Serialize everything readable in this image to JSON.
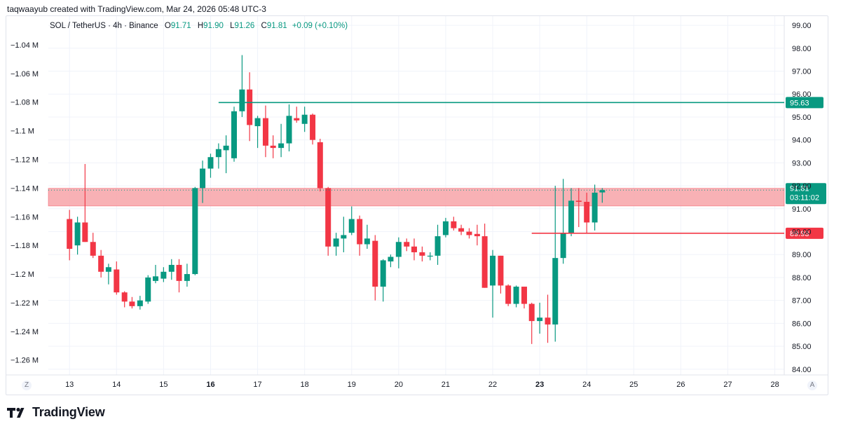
{
  "header": {
    "attribution": "taqwaayub created with TradingView.com, Mar 24, 2026 05:48 UTC-3"
  },
  "legend": {
    "symbol": "SOL / TetherUS · 4h · Binance",
    "o_label": "O",
    "o_value": "91.71",
    "h_label": "H",
    "h_value": "91.90",
    "l_label": "L",
    "l_value": "91.26",
    "c_label": "C",
    "c_value": "91.81",
    "change": "+0.09 (+0.10%)"
  },
  "buttons": {
    "z": "Z",
    "a": "A"
  },
  "footer": {
    "brand": "TradingView"
  },
  "colors": {
    "up": "#089981",
    "down": "#f23645",
    "zone_fill": "#f7a3a8",
    "resistance": "#089981",
    "support": "#f23645",
    "current": "#089981"
  },
  "chart_data": {
    "type": "candlestick",
    "symbol": "SOL / TetherUS",
    "interval": "4h",
    "exchange": "Binance",
    "x_ticks": [
      {
        "x": 13,
        "label": "13",
        "bold": false
      },
      {
        "x": 14,
        "label": "14",
        "bold": false
      },
      {
        "x": 15,
        "label": "15",
        "bold": false
      },
      {
        "x": 16,
        "label": "16",
        "bold": true
      },
      {
        "x": 17,
        "label": "17",
        "bold": false
      },
      {
        "x": 18,
        "label": "18",
        "bold": false
      },
      {
        "x": 19,
        "label": "19",
        "bold": false
      },
      {
        "x": 20,
        "label": "20",
        "bold": false
      },
      {
        "x": 21,
        "label": "21",
        "bold": false
      },
      {
        "x": 22,
        "label": "22",
        "bold": false
      },
      {
        "x": 23,
        "label": "23",
        "bold": true
      },
      {
        "x": 24,
        "label": "24",
        "bold": false
      },
      {
        "x": 25,
        "label": "25",
        "bold": false
      },
      {
        "x": 26,
        "label": "26",
        "bold": false
      },
      {
        "x": 27,
        "label": "27",
        "bold": false
      },
      {
        "x": 28,
        "label": "28",
        "bold": false
      }
    ],
    "xlim": [
      12.55,
      28.2
    ],
    "right_axis": {
      "range": [
        83.75,
        99.4
      ],
      "ticks": [
        "84.00",
        "85.00",
        "86.00",
        "87.00",
        "88.00",
        "89.00",
        "90.00",
        "91.00",
        "92.00",
        "93.00",
        "94.00",
        "95.00",
        "96.00",
        "97.00",
        "98.00",
        "99.00"
      ]
    },
    "left_axis": {
      "note": "secondary scale",
      "ticks": [
        {
          "label": "−1.04 M",
          "price": 98.15
        },
        {
          "label": "−1.06 M",
          "price": 96.9
        },
        {
          "label": "−1.08 M",
          "price": 95.65
        },
        {
          "label": "−1.1 M",
          "price": 94.4
        },
        {
          "label": "−1.12 M",
          "price": 93.15
        },
        {
          "label": "−1.14 M",
          "price": 91.9
        },
        {
          "label": "−1.16 M",
          "price": 90.65
        },
        {
          "label": "−1.18 M",
          "price": 89.4
        },
        {
          "label": "−1.2 M",
          "price": 88.15
        },
        {
          "label": "−1.22 M",
          "price": 86.9
        },
        {
          "label": "−1.24 M",
          "price": 85.65
        },
        {
          "label": "−1.26 M",
          "price": 84.4
        }
      ]
    },
    "candles": [
      {
        "t": 13.0,
        "o": 90.55,
        "h": 90.95,
        "l": 88.75,
        "c": 89.25
      },
      {
        "t": 13.17,
        "o": 89.4,
        "h": 90.65,
        "l": 89.0,
        "c": 90.4
      },
      {
        "t": 13.33,
        "o": 90.4,
        "h": 92.95,
        "l": 89.55,
        "c": 89.55
      },
      {
        "t": 13.5,
        "o": 89.55,
        "h": 89.95,
        "l": 88.85,
        "c": 88.95
      },
      {
        "t": 13.67,
        "o": 88.95,
        "h": 89.2,
        "l": 88.0,
        "c": 88.25
      },
      {
        "t": 13.83,
        "o": 88.25,
        "h": 88.6,
        "l": 87.7,
        "c": 88.45
      },
      {
        "t": 14.0,
        "o": 88.35,
        "h": 88.7,
        "l": 87.25,
        "c": 87.35
      },
      {
        "t": 14.17,
        "o": 87.35,
        "h": 87.4,
        "l": 86.7,
        "c": 86.95
      },
      {
        "t": 14.33,
        "o": 86.95,
        "h": 87.15,
        "l": 86.65,
        "c": 86.75
      },
      {
        "t": 14.5,
        "o": 86.75,
        "h": 87.2,
        "l": 86.6,
        "c": 87.0
      },
      {
        "t": 14.67,
        "o": 86.95,
        "h": 88.1,
        "l": 86.85,
        "c": 88.0
      },
      {
        "t": 14.83,
        "o": 87.85,
        "h": 88.55,
        "l": 87.75,
        "c": 88.05
      },
      {
        "t": 15.0,
        "o": 87.95,
        "h": 88.45,
        "l": 87.8,
        "c": 88.25
      },
      {
        "t": 15.17,
        "o": 88.25,
        "h": 88.8,
        "l": 87.9,
        "c": 88.55
      },
      {
        "t": 15.33,
        "o": 88.55,
        "h": 88.8,
        "l": 87.35,
        "c": 87.85
      },
      {
        "t": 15.5,
        "o": 87.85,
        "h": 88.6,
        "l": 87.6,
        "c": 88.15
      },
      {
        "t": 15.67,
        "o": 88.15,
        "h": 91.95,
        "l": 88.1,
        "c": 91.9
      },
      {
        "t": 15.83,
        "o": 91.9,
        "h": 93.1,
        "l": 91.25,
        "c": 92.75
      },
      {
        "t": 16.0,
        "o": 92.75,
        "h": 93.4,
        "l": 92.35,
        "c": 93.25
      },
      {
        "t": 16.17,
        "o": 93.25,
        "h": 93.85,
        "l": 92.75,
        "c": 93.6
      },
      {
        "t": 16.33,
        "o": 93.55,
        "h": 94.2,
        "l": 92.55,
        "c": 93.75
      },
      {
        "t": 16.5,
        "o": 93.2,
        "h": 95.45,
        "l": 93.05,
        "c": 95.25
      },
      {
        "t": 16.67,
        "o": 95.25,
        "h": 97.7,
        "l": 95.0,
        "c": 96.2
      },
      {
        "t": 16.83,
        "o": 96.2,
        "h": 96.95,
        "l": 93.95,
        "c": 94.65
      },
      {
        "t": 17.0,
        "o": 94.6,
        "h": 95.05,
        "l": 93.65,
        "c": 94.95
      },
      {
        "t": 17.17,
        "o": 94.95,
        "h": 95.5,
        "l": 93.25,
        "c": 93.75
      },
      {
        "t": 17.33,
        "o": 93.75,
        "h": 94.2,
        "l": 93.2,
        "c": 93.65
      },
      {
        "t": 17.5,
        "o": 93.65,
        "h": 94.7,
        "l": 93.25,
        "c": 93.85
      },
      {
        "t": 17.67,
        "o": 93.85,
        "h": 95.55,
        "l": 93.5,
        "c": 95.05
      },
      {
        "t": 17.83,
        "o": 94.95,
        "h": 95.45,
        "l": 94.75,
        "c": 94.85
      },
      {
        "t": 18.0,
        "o": 94.7,
        "h": 95.45,
        "l": 94.35,
        "c": 95.1
      },
      {
        "t": 18.17,
        "o": 95.1,
        "h": 95.15,
        "l": 93.8,
        "c": 94.0
      },
      {
        "t": 18.33,
        "o": 93.9,
        "h": 94.05,
        "l": 91.75,
        "c": 91.9
      },
      {
        "t": 18.5,
        "o": 91.9,
        "h": 91.95,
        "l": 88.95,
        "c": 89.35
      },
      {
        "t": 18.67,
        "o": 89.35,
        "h": 89.95,
        "l": 88.95,
        "c": 89.7
      },
      {
        "t": 18.83,
        "o": 89.7,
        "h": 90.65,
        "l": 89.1,
        "c": 89.85
      },
      {
        "t": 19.0,
        "o": 89.95,
        "h": 91.1,
        "l": 89.85,
        "c": 90.55
      },
      {
        "t": 19.17,
        "o": 90.55,
        "h": 90.7,
        "l": 88.95,
        "c": 89.45
      },
      {
        "t": 19.33,
        "o": 89.45,
        "h": 90.3,
        "l": 89.25,
        "c": 89.7
      },
      {
        "t": 19.5,
        "o": 89.6,
        "h": 89.85,
        "l": 87.0,
        "c": 87.6
      },
      {
        "t": 19.67,
        "o": 87.6,
        "h": 88.8,
        "l": 86.95,
        "c": 88.75
      },
      {
        "t": 19.83,
        "o": 88.7,
        "h": 89.0,
        "l": 88.45,
        "c": 88.9
      },
      {
        "t": 20.0,
        "o": 88.9,
        "h": 89.75,
        "l": 88.4,
        "c": 89.55
      },
      {
        "t": 20.17,
        "o": 89.55,
        "h": 89.7,
        "l": 89.15,
        "c": 89.35
      },
      {
        "t": 20.33,
        "o": 89.35,
        "h": 89.7,
        "l": 88.75,
        "c": 89.1
      },
      {
        "t": 20.5,
        "o": 89.1,
        "h": 89.35,
        "l": 88.7,
        "c": 88.95
      },
      {
        "t": 20.67,
        "o": 88.95,
        "h": 89.1,
        "l": 88.75,
        "c": 88.95
      },
      {
        "t": 20.83,
        "o": 88.95,
        "h": 90.3,
        "l": 88.55,
        "c": 89.8
      },
      {
        "t": 21.0,
        "o": 89.85,
        "h": 90.6,
        "l": 89.75,
        "c": 90.45
      },
      {
        "t": 21.17,
        "o": 90.45,
        "h": 90.65,
        "l": 90.05,
        "c": 90.15
      },
      {
        "t": 21.33,
        "o": 90.15,
        "h": 90.3,
        "l": 89.85,
        "c": 90.0
      },
      {
        "t": 21.5,
        "o": 90.0,
        "h": 90.15,
        "l": 89.7,
        "c": 89.85
      },
      {
        "t": 21.67,
        "o": 89.9,
        "h": 90.3,
        "l": 89.4,
        "c": 89.8
      },
      {
        "t": 21.83,
        "o": 89.8,
        "h": 90.35,
        "l": 87.55,
        "c": 87.55
      },
      {
        "t": 22.0,
        "o": 87.65,
        "h": 89.2,
        "l": 86.25,
        "c": 88.95
      },
      {
        "t": 22.17,
        "o": 88.95,
        "h": 88.95,
        "l": 87.3,
        "c": 87.65
      },
      {
        "t": 22.33,
        "o": 87.65,
        "h": 87.7,
        "l": 86.75,
        "c": 86.85
      },
      {
        "t": 22.5,
        "o": 86.85,
        "h": 87.65,
        "l": 86.7,
        "c": 87.6
      },
      {
        "t": 22.67,
        "o": 87.6,
        "h": 87.6,
        "l": 86.65,
        "c": 86.85
      },
      {
        "t": 22.83,
        "o": 86.85,
        "h": 86.9,
        "l": 85.1,
        "c": 86.1
      },
      {
        "t": 23.0,
        "o": 86.1,
        "h": 86.9,
        "l": 85.55,
        "c": 86.25
      },
      {
        "t": 23.17,
        "o": 86.25,
        "h": 87.25,
        "l": 85.15,
        "c": 85.95
      },
      {
        "t": 23.33,
        "o": 85.95,
        "h": 92.0,
        "l": 85.2,
        "c": 88.85
      },
      {
        "t": 23.5,
        "o": 88.85,
        "h": 92.3,
        "l": 88.6,
        "c": 89.95
      },
      {
        "t": 23.67,
        "o": 89.95,
        "h": 91.9,
        "l": 89.8,
        "c": 91.35
      },
      {
        "t": 23.83,
        "o": 91.35,
        "h": 91.9,
        "l": 90.2,
        "c": 91.3
      },
      {
        "t": 24.0,
        "o": 91.3,
        "h": 91.7,
        "l": 89.95,
        "c": 90.4
      },
      {
        "t": 24.17,
        "o": 90.4,
        "h": 92.05,
        "l": 90.05,
        "c": 91.7
      },
      {
        "t": 24.33,
        "o": 91.71,
        "h": 91.9,
        "l": 91.26,
        "c": 91.81
      }
    ],
    "horizontal_lines": [
      {
        "name": "resistance",
        "price": 95.63,
        "label": "95.63",
        "x_start": 16.17,
        "x_end": 28.2
      },
      {
        "name": "support",
        "price": 89.93,
        "label": "89.93",
        "x_start": 22.83,
        "x_end": 28.2
      }
    ],
    "zones": [
      {
        "name": "supply-zone",
        "price_top": 91.89,
        "price_bottom": 91.12
      }
    ],
    "current_price": {
      "price": 91.81,
      "label": "91.81",
      "countdown": "03:11:02"
    }
  }
}
